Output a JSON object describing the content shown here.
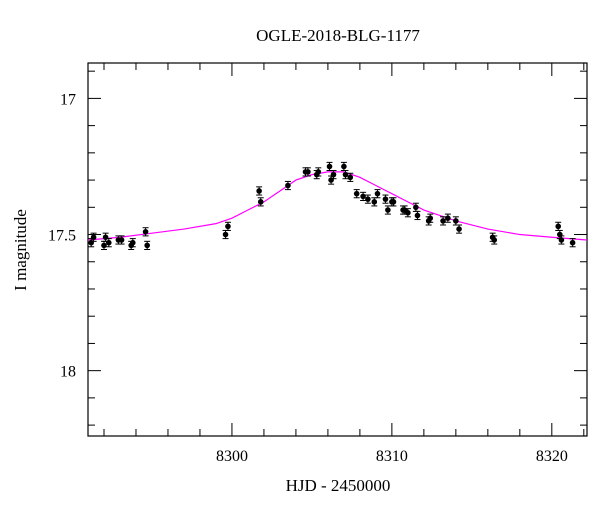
{
  "chart_data": {
    "type": "scatter",
    "title": "OGLE-2018-BLG-1177",
    "xlabel": "HJD - 2450000",
    "ylabel": "I magnitude",
    "xlim": [
      8291,
      8322.2
    ],
    "ylim": [
      18.24,
      16.87
    ],
    "y_inverted": true,
    "x_ticks": [
      8300,
      8310,
      8320
    ],
    "y_ticks": [
      17,
      17.5,
      18
    ],
    "y_tick_labels": [
      "17",
      "17.5",
      "18"
    ],
    "grid": false,
    "colors": {
      "points": "#000000",
      "model": "#ff00ff",
      "axes": "#000000"
    },
    "series": [
      {
        "marker": "filled-circle-with-errorbars",
        "x": [
          8291.2,
          8291.35,
          8292.0,
          8292.1,
          8292.3,
          8292.9,
          8293.1,
          8293.7,
          8293.8,
          8294.6,
          8294.7,
          8299.6,
          8299.75,
          8301.7,
          8301.8,
          8303.5,
          8304.6,
          8304.75,
          8305.3,
          8305.4,
          8306.1,
          8306.2,
          8306.35,
          8307.0,
          8307.1,
          8307.4,
          8307.8,
          8308.2,
          8308.5,
          8308.9,
          8309.1,
          8309.6,
          8309.75,
          8310.0,
          8310.1,
          8310.7,
          8310.8,
          8311.0,
          8311.5,
          8311.6,
          8312.3,
          8312.4,
          8313.2,
          8313.5,
          8314.0,
          8314.2,
          8316.3,
          8316.4,
          8320.4,
          8320.5,
          8320.6,
          8321.3
        ],
        "y": [
          17.53,
          17.51,
          17.54,
          17.51,
          17.53,
          17.52,
          17.52,
          17.54,
          17.53,
          17.49,
          17.54,
          17.5,
          17.47,
          17.34,
          17.38,
          17.32,
          17.27,
          17.27,
          17.28,
          17.27,
          17.25,
          17.3,
          17.28,
          17.25,
          17.28,
          17.29,
          17.35,
          17.36,
          17.37,
          17.38,
          17.35,
          17.37,
          17.41,
          17.38,
          17.38,
          17.41,
          17.41,
          17.42,
          17.4,
          17.43,
          17.45,
          17.44,
          17.45,
          17.44,
          17.45,
          17.48,
          17.51,
          17.52,
          17.47,
          17.5,
          17.52,
          17.53
        ],
        "yerr": 0.015
      },
      {
        "style": "line",
        "x": [
          8291,
          8293,
          8295,
          8297,
          8299,
          8300,
          8301,
          8302,
          8303,
          8304,
          8305,
          8306,
          8306.5,
          8307,
          8308,
          8309,
          8310,
          8311,
          8312,
          8313,
          8314,
          8316,
          8318,
          8320,
          8322.2
        ],
        "y": [
          17.52,
          17.51,
          17.495,
          17.48,
          17.46,
          17.44,
          17.41,
          17.38,
          17.34,
          17.3,
          17.28,
          17.27,
          17.27,
          17.27,
          17.29,
          17.32,
          17.35,
          17.38,
          17.41,
          17.43,
          17.45,
          17.48,
          17.5,
          17.51,
          17.52
        ]
      }
    ]
  }
}
